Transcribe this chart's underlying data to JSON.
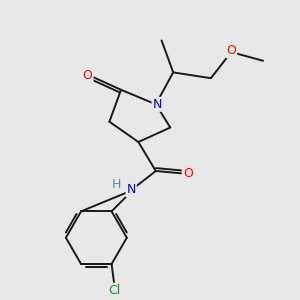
{
  "bg_color": "#e8e8e8",
  "bond_color": "#1a1a1a",
  "atom_colors": {
    "O": "#ff0000",
    "N": "#0000cc",
    "Cl": "#228b22",
    "H": "#5588aa"
  },
  "lw": 1.4,
  "font_size": 9
}
